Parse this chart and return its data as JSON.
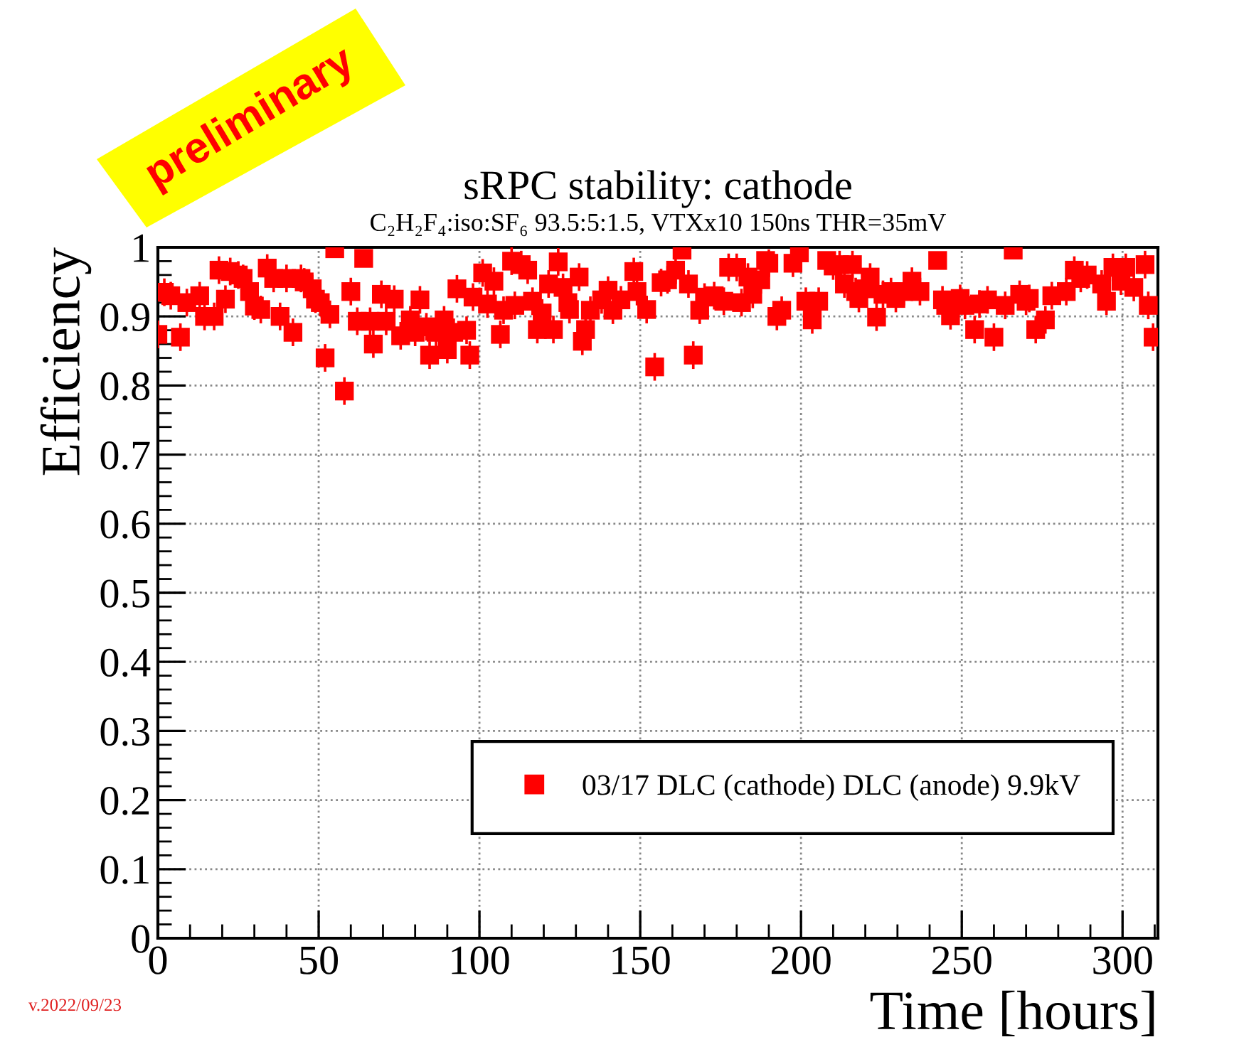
{
  "chart_data": {
    "type": "scatter",
    "title": "sRPC stability: cathode",
    "subtitle": "C₂H₂F₄:iso:SF₆ 93.5:5:1.5, VTXx10 150ns THR=35mV",
    "xlabel": "Time [hours]",
    "ylabel": "Efficiency",
    "annotations": [
      "preliminary",
      "v.2022/09/23"
    ],
    "xlim": [
      0,
      311
    ],
    "ylim": [
      0,
      1
    ],
    "xticks": [
      0,
      50,
      100,
      150,
      200,
      250,
      300
    ],
    "yticks": [
      0,
      0.1,
      0.2,
      0.3,
      0.4,
      0.5,
      0.6,
      0.7,
      0.8,
      0.9,
      1
    ],
    "grid": true,
    "legend": "bottom right",
    "marker": "square",
    "series": [
      {
        "name": "03/17 DLC (cathode) DLC (anode) 9.9kV",
        "color": "#ff0000",
        "x": [
          0,
          2,
          4,
          7,
          9,
          13,
          14.5,
          17.5,
          19,
          21,
          22.5,
          25,
          26.5,
          28.5,
          30,
          32,
          34,
          36,
          38,
          40,
          42,
          44.5,
          45.5,
          48,
          49,
          50.5,
          52,
          53.5,
          55,
          58,
          60,
          62,
          64,
          66,
          67,
          69.5,
          71,
          73.5,
          75.5,
          78.5,
          80,
          81.5,
          83.5,
          84.5,
          86.5,
          89,
          90,
          92,
          93,
          96,
          97,
          98,
          101,
          102.5,
          104.5,
          106.5,
          107.5,
          110,
          111,
          113,
          115,
          116.5,
          118,
          119.5,
          121.5,
          123,
          124.5,
          126,
          127.5,
          128,
          131,
          132,
          133,
          134.5,
          138,
          140,
          141.5,
          144,
          148,
          149,
          152,
          154.5,
          156.5,
          158.5,
          161,
          163,
          165,
          166.5,
          168.5,
          170,
          173,
          176,
          177.5,
          180,
          181.5,
          183.5,
          185,
          187.5,
          189,
          190,
          192.5,
          194,
          197.5,
          199.5,
          201.5,
          203.5,
          205.5,
          208,
          210,
          212,
          213.5,
          216,
          217,
          218,
          220,
          221.5,
          223.5,
          225.5,
          228,
          229.5,
          232,
          234.5,
          237,
          242.5,
          244,
          245,
          246.5,
          249.5,
          251,
          254,
          255.5,
          258,
          260,
          263.5,
          266,
          268,
          270,
          271,
          273,
          276,
          278,
          282.5,
          285,
          287,
          289,
          293.5,
          295,
          297,
          299.5,
          301,
          303.5,
          307,
          308,
          309.5
        ],
        "values": [
          0.874,
          0.935,
          0.93,
          0.87,
          0.92,
          0.93,
          0.9,
          0.9,
          0.967,
          0.925,
          0.965,
          0.96,
          0.955,
          0.936,
          0.915,
          0.91,
          0.97,
          0.955,
          0.9,
          0.955,
          0.877,
          0.955,
          0.95,
          0.94,
          0.925,
          0.92,
          0.84,
          0.903,
          0.998,
          0.792,
          0.936,
          0.893,
          0.984,
          0.893,
          0.86,
          0.932,
          0.893,
          0.925,
          0.872,
          0.895,
          0.877,
          0.924,
          0.885,
          0.844,
          0.877,
          0.895,
          0.852,
          0.877,
          0.94,
          0.88,
          0.844,
          0.928,
          0.963,
          0.918,
          0.951,
          0.874,
          0.909,
          0.98,
          0.916,
          0.975,
          0.967,
          0.922,
          0.881,
          0.905,
          0.947,
          0.881,
          0.979,
          0.942,
          0.92,
          0.91,
          0.957,
          0.864,
          0.881,
          0.909,
          0.924,
          0.938,
          0.909,
          0.924,
          0.965,
          0.936,
          0.91,
          0.827,
          0.949,
          0.953,
          0.967,
          0.996,
          0.947,
          0.844,
          0.909,
          0.928,
          0.93,
          0.922,
          0.971,
          0.971,
          0.92,
          0.957,
          0.932,
          0.953,
          0.981,
          0.977,
          0.9,
          0.909,
          0.977,
          0.992,
          0.922,
          0.895,
          0.922,
          0.981,
          0.973,
          0.975,
          0.947,
          0.975,
          0.936,
          0.926,
          0.94,
          0.957,
          0.899,
          0.932,
          0.936,
          0.926,
          0.936,
          0.951,
          0.936,
          0.981,
          0.924,
          0.916,
          0.901,
          0.926,
          0.916,
          0.881,
          0.918,
          0.924,
          0.87,
          0.916,
          0.996,
          0.932,
          0.922,
          0.926,
          0.881,
          0.895,
          0.93,
          0.936,
          0.967,
          0.955,
          0.96,
          0.947,
          0.922,
          0.971,
          0.951,
          0.971,
          0.942,
          0.975,
          0.916,
          0.87
        ],
        "errors": [
          0.02,
          0.02,
          0.02,
          0.02,
          0.02,
          0.02,
          0.02,
          0.02,
          0.02,
          0.02,
          0.02,
          0.02,
          0.02,
          0.02,
          0.02,
          0.02,
          0.02,
          0.02,
          0.02,
          0.02,
          0.02,
          0.02,
          0.02,
          0.02,
          0.02,
          0.02,
          0.02,
          0.02,
          null,
          0.02,
          0.02,
          0.02,
          null,
          0.02,
          0.02,
          0.02,
          0.02,
          0.02,
          0.02,
          0.02,
          0.02,
          0.02,
          0.02,
          0.02,
          0.02,
          0.02,
          0.02,
          0.02,
          0.02,
          0.02,
          0.02,
          0.02,
          0.02,
          0.02,
          0.02,
          0.02,
          0.02,
          0.02,
          0.02,
          0.02,
          0.02,
          0.02,
          0.02,
          0.02,
          0.02,
          0.02,
          0.02,
          0.02,
          0.02,
          0.02,
          0.02,
          0.02,
          0.02,
          0.02,
          0.02,
          0.02,
          0.02,
          0.02,
          0.02,
          0.02,
          0.02,
          0.02,
          0.02,
          0.02,
          0.02,
          null,
          0.02,
          0.02,
          0.02,
          0.02,
          0.02,
          0.02,
          0.02,
          0.02,
          0.02,
          0.02,
          0.02,
          0.02,
          null,
          0.02,
          0.02,
          0.02,
          0.02,
          null,
          0.02,
          0.02,
          0.02,
          null,
          0.02,
          0.02,
          0.02,
          0.02,
          0.02,
          0.02,
          0.02,
          0.02,
          0.02,
          0.02,
          0.02,
          0.02,
          0.02,
          0.02,
          0.02,
          null,
          0.02,
          0.02,
          0.02,
          0.02,
          0.02,
          0.02,
          0.02,
          0.02,
          0.02,
          0.02,
          null,
          0.02,
          0.02,
          0.02,
          0.02,
          0.02,
          0.02,
          0.02,
          0.02,
          0.02,
          0.02,
          0.02,
          0.02,
          0.02,
          0.02,
          0.02,
          0.02,
          0.02,
          0.02,
          0.02
        ]
      }
    ]
  }
}
